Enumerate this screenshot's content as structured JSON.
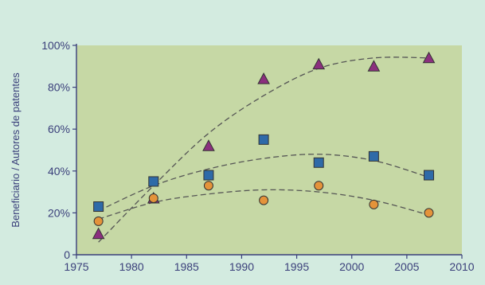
{
  "chart_data": {
    "type": "scatter",
    "ylabel": "Beneficiario / Autores de patentes",
    "xlabel": "",
    "x_ticks": [
      "1975",
      "1980",
      "1985",
      "1990",
      "1995",
      "2000",
      "2005",
      "2010"
    ],
    "y_ticks": [
      "0",
      "20%",
      "40%",
      "60%",
      "80%",
      "100%"
    ],
    "xlim": [
      1975,
      2010
    ],
    "ylim": [
      0,
      100
    ],
    "grid": false,
    "colors": {
      "plot_background": "#c6d8a5",
      "page_background": "#d3ebe0",
      "axis": "#3a3f7a",
      "trend": "#555555"
    },
    "series": [
      {
        "marker": "triangle",
        "color": "#8b2f7e",
        "x": [
          1977,
          1982,
          1987,
          1992,
          1997,
          2002,
          2007
        ],
        "y": [
          10,
          27,
          52,
          84,
          91,
          90,
          94
        ],
        "trend_y": [
          6,
          33,
          58,
          76,
          89,
          94,
          94
        ]
      },
      {
        "marker": "square",
        "color": "#2e6aa8",
        "x": [
          1977,
          1982,
          1987,
          1992,
          1997,
          2002,
          2007
        ],
        "y": [
          23,
          35,
          38,
          55,
          44,
          47,
          38
        ],
        "trend_y": [
          21,
          33,
          41,
          46,
          48,
          45,
          37
        ]
      },
      {
        "marker": "circle",
        "color": "#e4933a",
        "x": [
          1977,
          1982,
          1987,
          1992,
          1997,
          2002,
          2007
        ],
        "y": [
          16,
          27,
          33,
          26,
          33,
          24,
          20
        ],
        "trend_y": [
          17,
          25,
          29,
          31,
          30,
          26,
          19
        ]
      }
    ]
  }
}
